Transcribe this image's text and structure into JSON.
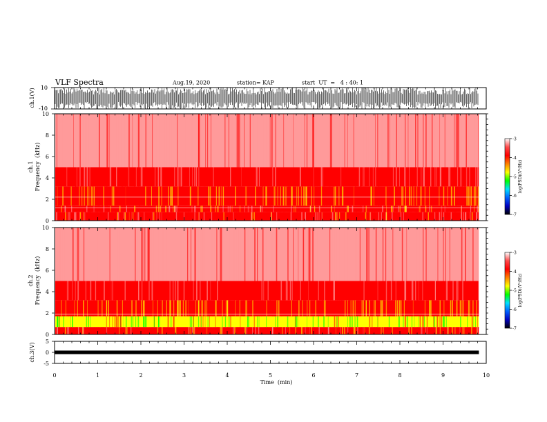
{
  "header": {
    "title": "VLF Spectra",
    "date": "Aug.19, 2020",
    "station": "station= KAP",
    "start": "start  UT  =   4 : 40: 1"
  },
  "colorbar": {
    "label": "log(PSD)(V²/Hz)",
    "ticks": [
      "-3",
      "-4",
      "-5",
      "-6",
      "-7"
    ],
    "colors": [
      "#ffffff",
      "#ff9a9a",
      "#ff0000",
      "#ffff00",
      "#00ff00",
      "#00c0ff",
      "#0000ff",
      "#000000"
    ]
  },
  "chart_data": [
    {
      "type": "line",
      "name": "ch1-waveform",
      "ylabel": "ch.1(V)",
      "yticks": [
        "10",
        "-10"
      ],
      "ylim": [
        -10,
        10
      ],
      "xlim": [
        0,
        10
      ],
      "x_data_extent": [
        0,
        9.83
      ],
      "description_values": {
        "amplitude_min": -10,
        "amplitude_max": 10
      }
    },
    {
      "type": "heatmap",
      "name": "ch1-spectrogram",
      "ylabel_top": "ch.1",
      "ylabel": "Frequency  (kHz)",
      "yticks": [
        "0",
        "2",
        "4",
        "6",
        "8",
        "10"
      ],
      "ylim": [
        0,
        10
      ],
      "xlim": [
        0,
        10
      ],
      "x_data_extent": [
        0,
        9.83
      ],
      "clim": [
        -7,
        -3
      ],
      "bands": [
        {
          "f_low": 0,
          "f_high": 0.8,
          "log_psd": -3.9
        },
        {
          "f_low": 0.8,
          "f_high": 1.4,
          "log_psd": -4.0
        },
        {
          "f_low": 1.4,
          "f_high": 3.2,
          "log_psd": -4.3
        },
        {
          "f_low": 3.2,
          "f_high": 5.0,
          "log_psd": -3.8
        },
        {
          "f_low": 5.0,
          "f_high": 10.0,
          "log_psd": -3.3
        }
      ],
      "line_frequencies_khz": [
        2.2,
        1.2
      ]
    },
    {
      "type": "heatmap",
      "name": "ch2-spectrogram",
      "ylabel_top": "ch.2",
      "ylabel": "Frequency  (kHz)",
      "yticks": [
        "0",
        "2",
        "4",
        "6",
        "8",
        "10"
      ],
      "ylim": [
        0,
        10
      ],
      "xlim": [
        0,
        10
      ],
      "x_data_extent": [
        0,
        9.83
      ],
      "clim": [
        -7,
        -3
      ],
      "bands": [
        {
          "f_low": 0,
          "f_high": 0.7,
          "log_psd": -4.0
        },
        {
          "f_low": 0.7,
          "f_high": 1.7,
          "log_psd": -4.8
        },
        {
          "f_low": 1.7,
          "f_high": 3.2,
          "log_psd": -4.3
        },
        {
          "f_low": 3.2,
          "f_high": 5.0,
          "log_psd": -3.8
        },
        {
          "f_low": 5.0,
          "f_high": 10.0,
          "log_psd": -3.3
        }
      ],
      "line_frequencies_khz": [
        1.9
      ]
    },
    {
      "type": "line",
      "name": "ch3-waveform",
      "ylabel": "ch.3(V)",
      "yticks": [
        "5",
        "0",
        "-5"
      ],
      "ylim": [
        -5,
        5
      ],
      "xlim": [
        0,
        10
      ],
      "x_data_extent": [
        0,
        9.83
      ],
      "description_values": {
        "amplitude_min": -0.8,
        "amplitude_max": 0.8
      }
    }
  ],
  "xaxis": {
    "label": "Time  (min)",
    "ticks": [
      "0",
      "1",
      "2",
      "3",
      "4",
      "5",
      "6",
      "7",
      "8",
      "9",
      "10"
    ]
  }
}
